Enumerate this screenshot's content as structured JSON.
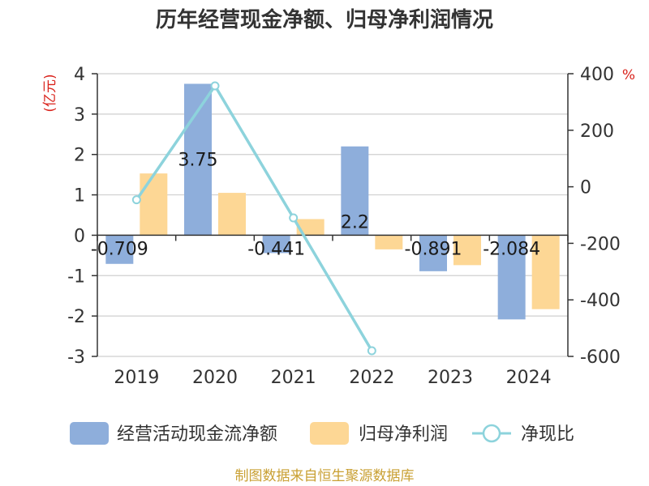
{
  "chart_data": {
    "type": "bar",
    "title": "历年经营现金净额、归母净利润情况",
    "categories": [
      "2019",
      "2020",
      "2021",
      "2022",
      "2023",
      "2024"
    ],
    "series": [
      {
        "name": "经营活动现金流净额",
        "type": "bar",
        "axis": "left",
        "color": "#8eaedb",
        "values": [
          -0.709,
          3.75,
          -0.441,
          2.2,
          -0.891,
          -2.084
        ],
        "labels": [
          "-0.709",
          "3.75",
          "-0.441",
          "2.2",
          "-0.891",
          "-2.084"
        ]
      },
      {
        "name": "归母净利润",
        "type": "bar",
        "axis": "left",
        "color": "#fdd795",
        "values": [
          1.53,
          1.05,
          0.4,
          -0.35,
          -0.74,
          -1.83
        ]
      },
      {
        "name": "净现比",
        "type": "line",
        "axis": "right",
        "color": "#8dd3dc",
        "values": [
          -46,
          357,
          -110,
          -580,
          null,
          null
        ]
      }
    ],
    "y_left": {
      "unit": "(亿元)",
      "ylim": [
        -3,
        4
      ],
      "ticks": [
        4,
        3,
        2,
        1,
        0,
        -1,
        -2,
        -3
      ]
    },
    "y_right": {
      "unit": "%",
      "ylim": [
        -600,
        400
      ],
      "ticks": [
        400,
        200,
        0,
        -200,
        -400,
        -600
      ]
    },
    "grid": true,
    "legend_position": "bottom"
  },
  "source": "制图数据来自恒生聚源数据库"
}
